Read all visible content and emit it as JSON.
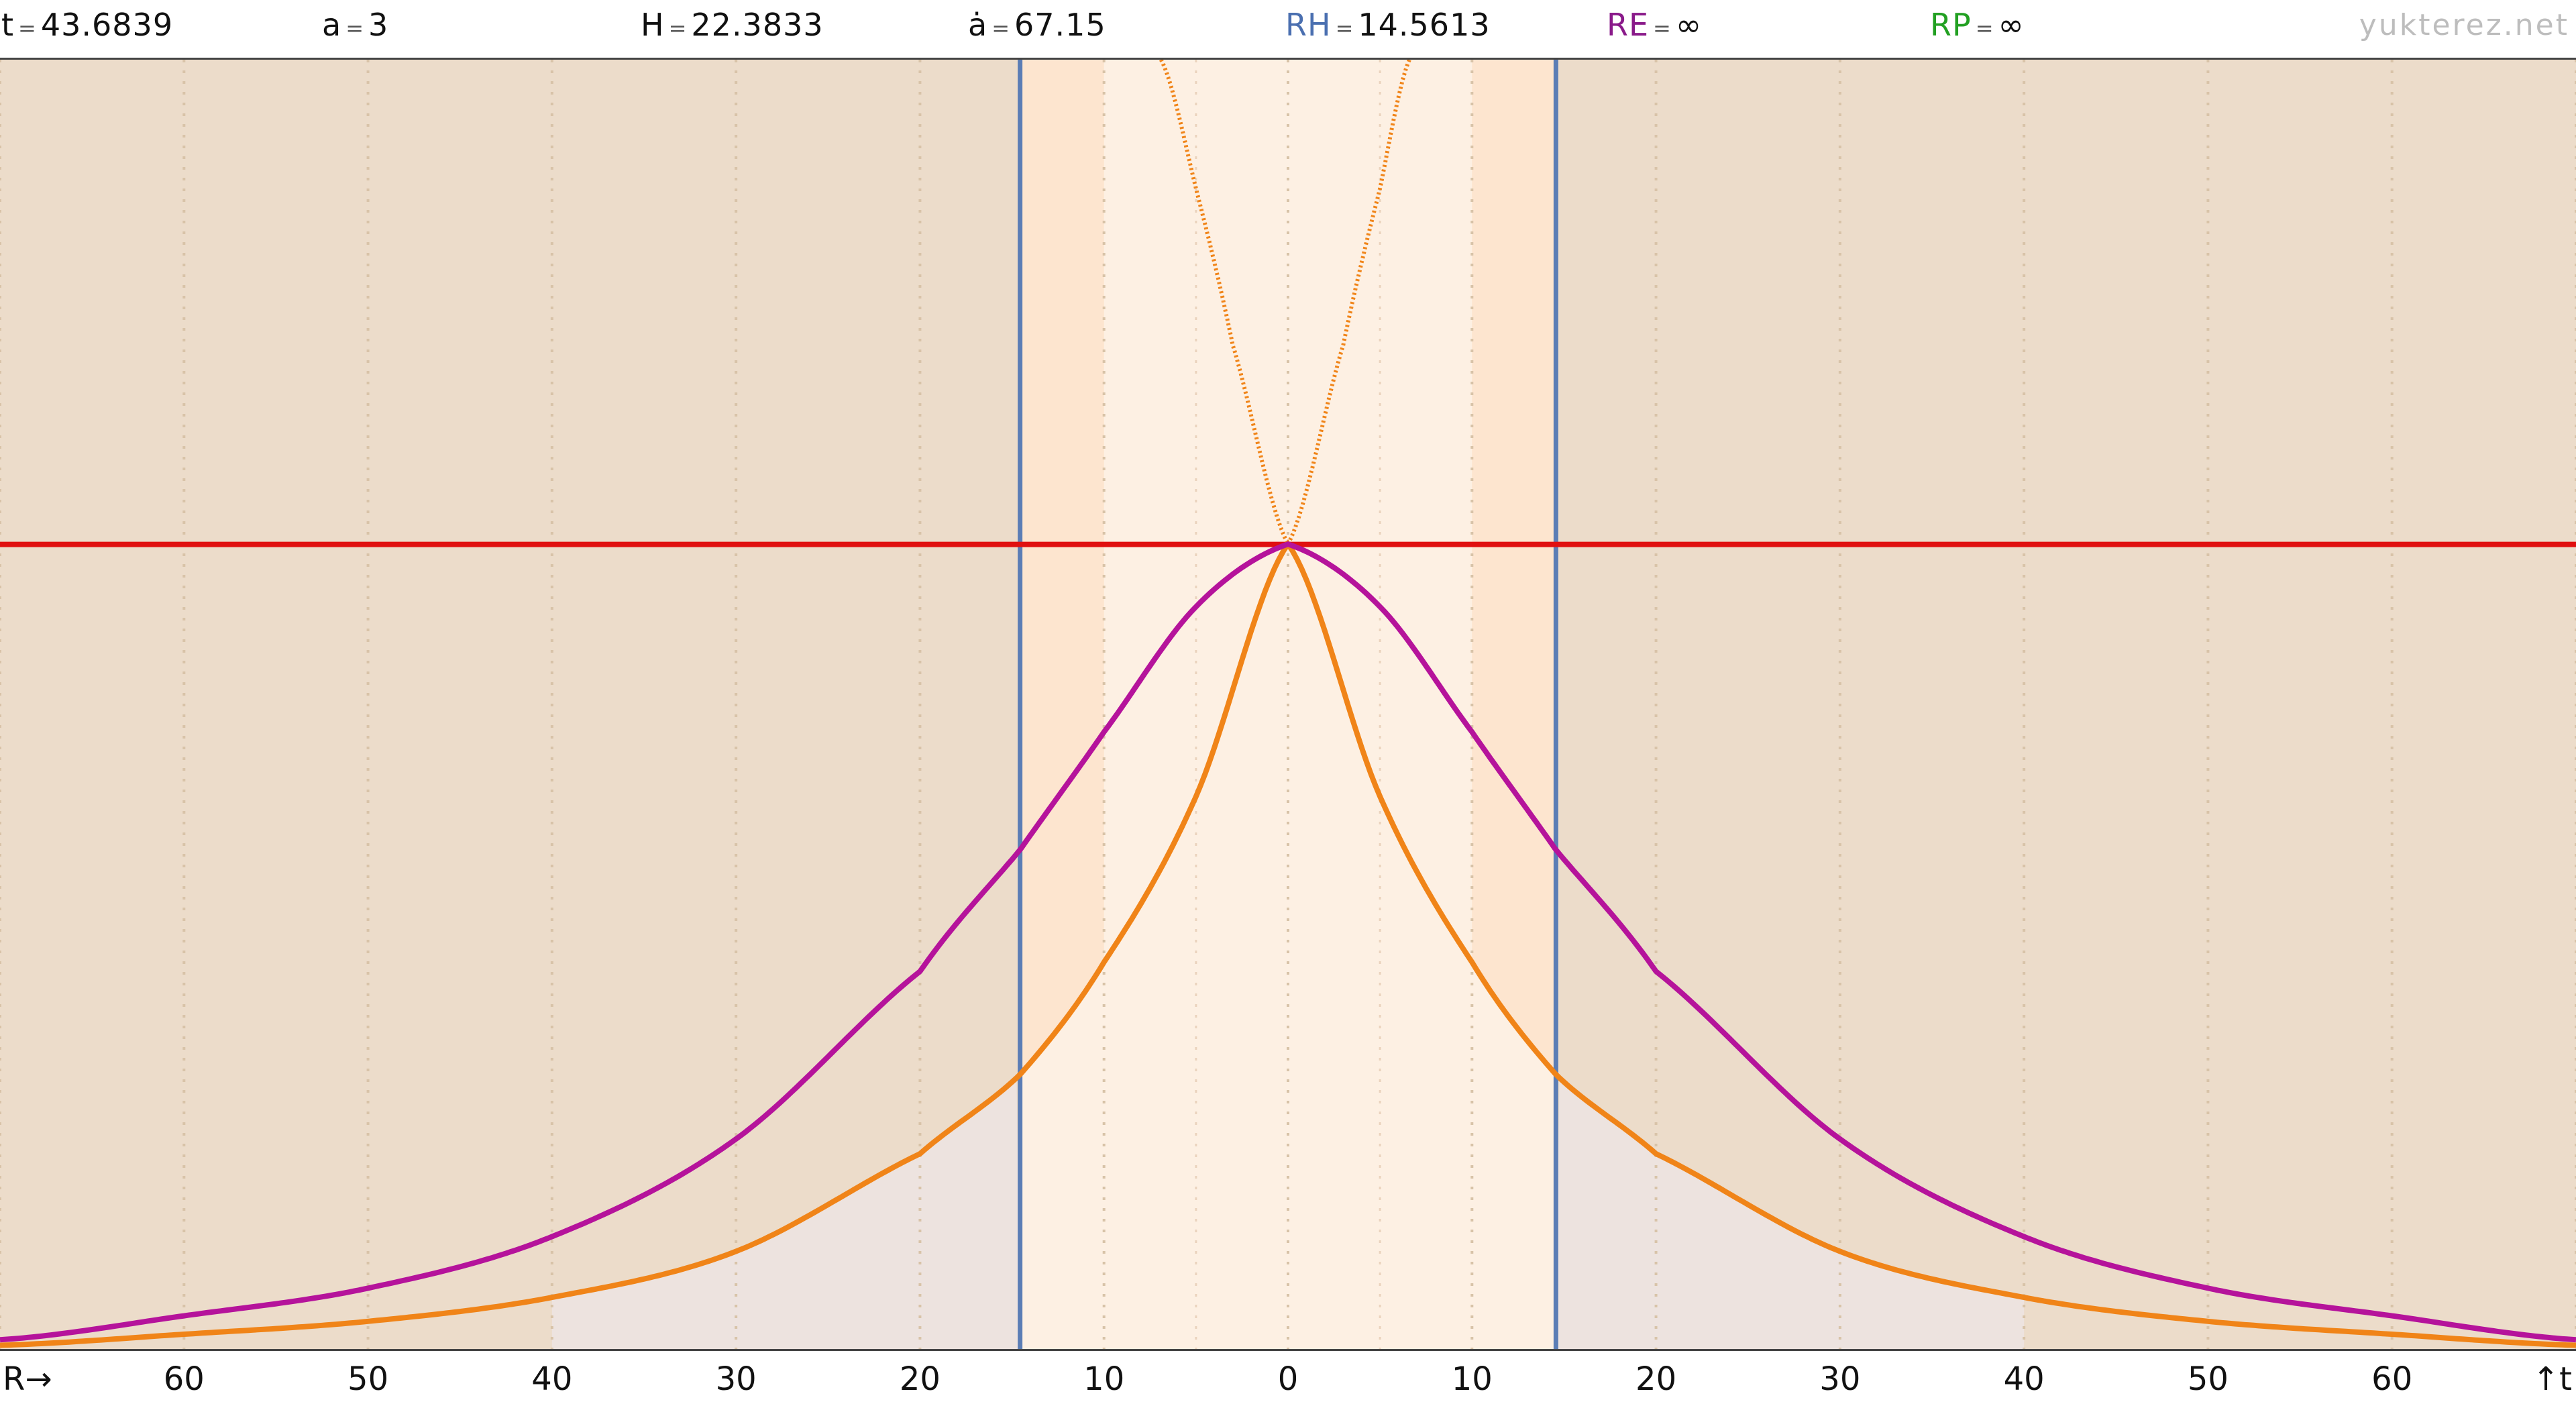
{
  "header": {
    "stats": [
      {
        "name": "t",
        "value": "43.6839",
        "color": "#111111"
      },
      {
        "name": "a",
        "value": "3",
        "color": "#111111"
      },
      {
        "name": "H",
        "value": "22.3833",
        "color": "#111111"
      },
      {
        "name": "ȧ",
        "value": "67.15",
        "color": "#111111"
      },
      {
        "name": "RH",
        "value": "14.5613",
        "color": "#4a6fb0"
      },
      {
        "name": "RE",
        "value": "∞",
        "color": "#8a1a8a"
      },
      {
        "name": "RP",
        "value": "∞",
        "color": "#22a022"
      }
    ],
    "equals": "=",
    "brand": "yukterez.net"
  },
  "axis": {
    "left_label": "R→",
    "right_label": "↑t",
    "ticks": [
      "60",
      "50",
      "40",
      "30",
      "20",
      "10",
      "0",
      "10",
      "20",
      "30",
      "40",
      "50",
      "60"
    ]
  },
  "chart_data": {
    "type": "line",
    "x_range": [
      -70,
      70
    ],
    "y_range": [
      0,
      70
    ],
    "x_ticks": [
      -60,
      -50,
      -40,
      -30,
      -20,
      -10,
      0,
      10,
      20,
      30,
      40,
      50,
      60
    ],
    "grid": "dotted vertical",
    "horizon_R": 14.5613,
    "red_line_t": 43.6839,
    "colors": {
      "outer_bg": "#ecdcca",
      "horizon_band": "#fde5cf",
      "center_band": "#fdf0e3",
      "lower_fill": "#ede3df",
      "horizon_line": "#5b7db5",
      "red_line": "#e01010",
      "magenta_curve": "#b5139b",
      "orange_curve": "#f08418",
      "orange_dotted": "#f08418"
    },
    "series": [
      {
        "style": "magenta",
        "x": [
          -70,
          -60,
          -50,
          -40,
          -30,
          -20,
          -14.56,
          -10,
          -5,
          0,
          5,
          10,
          14.56,
          20,
          30,
          40,
          50,
          60,
          70
        ],
        "y": [
          0.5,
          1.8,
          3.3,
          6.1,
          11.4,
          20.5,
          27.1,
          33.5,
          40.3,
          43.7,
          40.3,
          33.5,
          27.1,
          20.5,
          11.4,
          6.1,
          3.3,
          1.8,
          0.5
        ]
      },
      {
        "style": "orange",
        "x": [
          -70,
          -60,
          -50,
          -40,
          -30,
          -20,
          -14.56,
          -10,
          -5,
          0,
          5,
          10,
          14.56,
          20,
          30,
          40,
          50,
          60,
          70
        ],
        "y": [
          0.2,
          0.8,
          1.5,
          2.8,
          5.3,
          10.6,
          14.9,
          21.0,
          30.0,
          43.7,
          30.0,
          21.0,
          14.9,
          10.6,
          5.3,
          2.8,
          1.5,
          0.8,
          0.2
        ]
      },
      {
        "style": "orange-dotted",
        "x": [
          -6.9,
          -5,
          -3,
          0,
          3,
          5,
          6.6
        ],
        "y": [
          70,
          63.0,
          54.5,
          43.7,
          54.5,
          63.0,
          70
        ]
      }
    ]
  }
}
